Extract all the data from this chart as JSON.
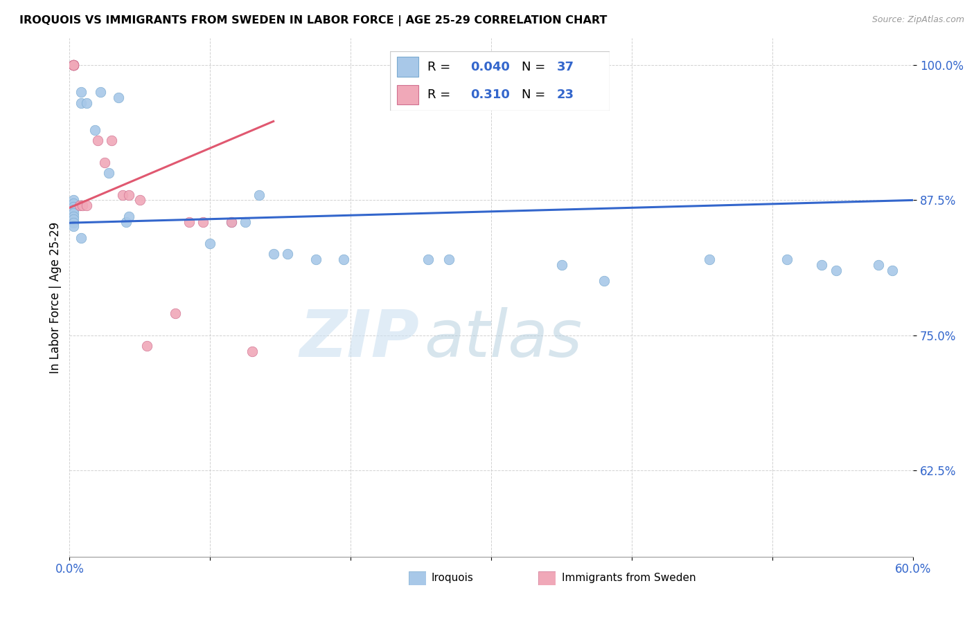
{
  "title": "IROQUOIS VS IMMIGRANTS FROM SWEDEN IN LABOR FORCE | AGE 25-29 CORRELATION CHART",
  "source": "Source: ZipAtlas.com",
  "ylabel": "In Labor Force | Age 25-29",
  "xlim": [
    0.0,
    0.6
  ],
  "ylim": [
    0.545,
    1.025
  ],
  "xticks": [
    0.0,
    0.1,
    0.2,
    0.3,
    0.4,
    0.5,
    0.6
  ],
  "xticklabels": [
    "0.0%",
    "",
    "",
    "",
    "",
    "",
    "60.0%"
  ],
  "yticks": [
    0.625,
    0.75,
    0.875,
    1.0
  ],
  "yticklabels": [
    "62.5%",
    "75.0%",
    "87.5%",
    "100.0%"
  ],
  "legend_blue_r": "0.040",
  "legend_blue_n": "37",
  "legend_pink_r": "0.310",
  "legend_pink_n": "23",
  "blue_color": "#a8c8e8",
  "pink_color": "#f0a8b8",
  "blue_line_color": "#3366cc",
  "pink_line_color": "#e05870",
  "watermark_1": "ZIP",
  "watermark_2": "atlas",
  "blue_scatter_x": [
    0.003,
    0.003,
    0.003,
    0.003,
    0.003,
    0.003,
    0.003,
    0.003,
    0.003,
    0.008,
    0.008,
    0.008,
    0.012,
    0.018,
    0.022,
    0.028,
    0.035,
    0.04,
    0.042,
    0.1,
    0.115,
    0.125,
    0.135,
    0.145,
    0.155,
    0.175,
    0.195,
    0.255,
    0.27,
    0.35,
    0.38,
    0.455,
    0.51,
    0.535,
    0.545,
    0.575,
    0.585
  ],
  "blue_scatter_y": [
    0.875,
    0.872,
    0.869,
    0.866,
    0.863,
    0.86,
    0.857,
    0.854,
    0.851,
    0.975,
    0.965,
    0.84,
    0.965,
    0.94,
    0.975,
    0.9,
    0.97,
    0.855,
    0.86,
    0.835,
    0.855,
    0.855,
    0.88,
    0.825,
    0.825,
    0.82,
    0.82,
    0.82,
    0.82,
    0.815,
    0.8,
    0.82,
    0.82,
    0.815,
    0.81,
    0.815,
    0.81
  ],
  "pink_scatter_x": [
    0.003,
    0.003,
    0.003,
    0.003,
    0.003,
    0.003,
    0.003,
    0.003,
    0.007,
    0.009,
    0.012,
    0.02,
    0.025,
    0.03,
    0.038,
    0.042,
    0.05,
    0.055,
    0.075,
    0.085,
    0.095,
    0.115,
    0.13
  ],
  "pink_scatter_y": [
    1.0,
    1.0,
    1.0,
    1.0,
    1.0,
    1.0,
    1.0,
    1.0,
    0.87,
    0.87,
    0.87,
    0.93,
    0.91,
    0.93,
    0.88,
    0.88,
    0.875,
    0.74,
    0.77,
    0.855,
    0.855,
    0.855,
    0.735
  ],
  "blue_trend_x": [
    0.0,
    0.6
  ],
  "blue_trend_y": [
    0.854,
    0.875
  ],
  "pink_trend_x": [
    0.0,
    0.145
  ],
  "pink_trend_y": [
    0.868,
    0.948
  ]
}
